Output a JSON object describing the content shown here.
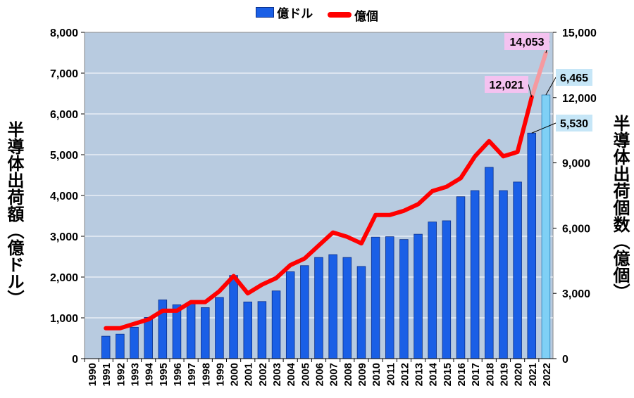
{
  "legend": {
    "bar_label": "億ドル",
    "line_label": "億個"
  },
  "colors": {
    "bar": "#1a5fe6",
    "bar_forecast": "#7fd0f5",
    "line": "#ff0000",
    "line_forecast": "#f59aa0",
    "plot_bg": "#b8cbe0",
    "callout_pink": "#f4c2f0",
    "callout_blue": "#c6e6f7"
  },
  "chart_data": {
    "type": "bar+line",
    "ylabel_left": "半導体出荷額（億ドル）",
    "ylabel_right": "半導体出荷個数（億個）",
    "x": [
      "1990",
      "1991",
      "1992",
      "1993",
      "1994",
      "1995",
      "1996",
      "1997",
      "1998",
      "1999",
      "2000",
      "2001",
      "2002",
      "2003",
      "2004",
      "2005",
      "2006",
      "2007",
      "2008",
      "2009",
      "2010",
      "2011",
      "2012",
      "2013",
      "2014",
      "2015",
      "2016",
      "2017",
      "2018",
      "2019",
      "2020",
      "2021",
      "2022"
    ],
    "y_left_ticks": [
      "0",
      "1,000",
      "2,000",
      "3,000",
      "4,000",
      "5,000",
      "6,000",
      "7,000",
      "8,000"
    ],
    "y_right_ticks": [
      "0",
      "3,000",
      "6,000",
      "9,000",
      "12,000",
      "15,000"
    ],
    "ylim_left": [
      0,
      8000
    ],
    "ylim_right": [
      0,
      15000
    ],
    "series": [
      {
        "name": "億ドル",
        "type": "bar",
        "axis": "left",
        "values": [
          null,
          550,
          600,
          770,
          1010,
          1440,
          1320,
          1370,
          1250,
          1500,
          2040,
          1390,
          1400,
          1660,
          2130,
          2280,
          2480,
          2550,
          2480,
          2260,
          2980,
          2990,
          2920,
          3050,
          3350,
          3380,
          3970,
          4120,
          4690,
          4120,
          4330,
          5530,
          6465
        ],
        "forecast_from": "2022"
      },
      {
        "name": "億個",
        "type": "line",
        "axis": "right",
        "values": [
          null,
          1400,
          1400,
          1600,
          1800,
          2200,
          2200,
          2600,
          2600,
          3100,
          3800,
          3000,
          3400,
          3700,
          4300,
          4600,
          5200,
          5800,
          5600,
          5300,
          6600,
          6600,
          6800,
          7100,
          7700,
          7900,
          8300,
          9300,
          10000,
          9300,
          9500,
          12021,
          14053
        ],
        "forecast_from": "2021"
      }
    ],
    "annotations": [
      {
        "label": "14,053",
        "series": "億個",
        "year": "2022"
      },
      {
        "label": "12,021",
        "series": "億個",
        "year": "2021"
      },
      {
        "label": "6,465",
        "series": "億ドル",
        "year": "2022"
      },
      {
        "label": "5,530",
        "series": "億ドル",
        "year": "2021"
      }
    ]
  }
}
